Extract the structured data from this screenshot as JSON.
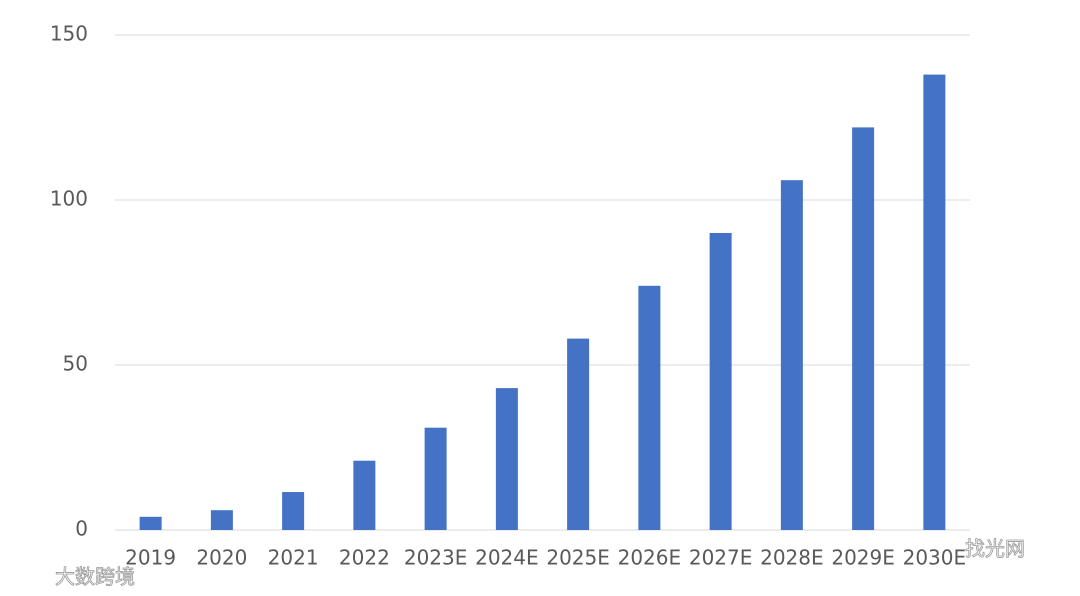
{
  "chart_data": {
    "type": "bar",
    "categories": [
      "2019",
      "2020",
      "2021",
      "2022",
      "2023E",
      "2024E",
      "2025E",
      "2026E",
      "2027E",
      "2028E",
      "2029E",
      "2030E"
    ],
    "values": [
      4,
      6,
      11.5,
      21,
      31,
      43,
      58,
      74,
      90,
      106,
      122,
      138
    ],
    "color": "#4472c4",
    "ylim": [
      0,
      150
    ],
    "yticks": [
      0,
      50,
      100,
      150
    ],
    "grid": true,
    "annotations": [
      "大数跨境",
      "找光网"
    ]
  }
}
